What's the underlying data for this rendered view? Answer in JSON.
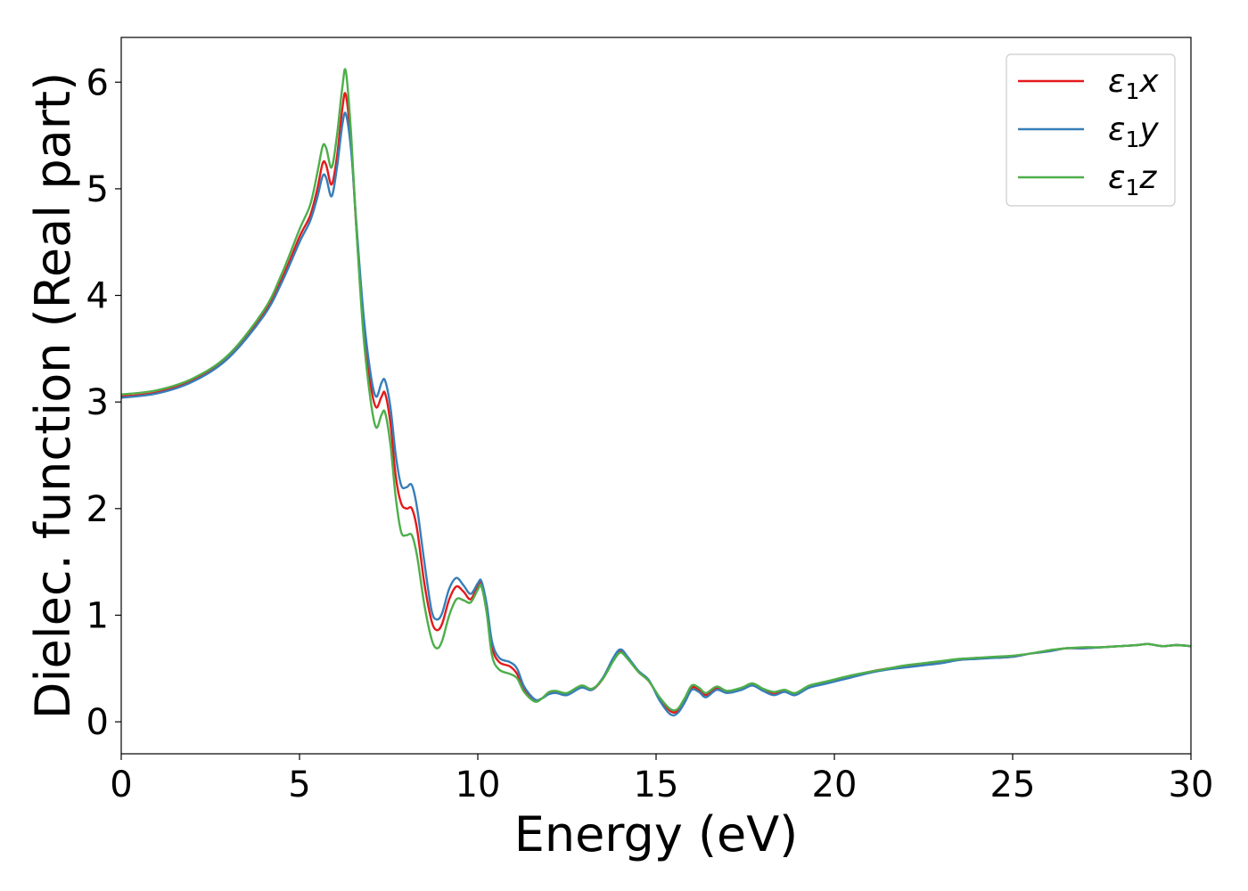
{
  "chart_data": {
    "type": "line",
    "xlabel": "Energy (eV)",
    "ylabel": "Dielec. function (Real part)",
    "xlim": [
      0,
      30
    ],
    "ylim": [
      -0.3,
      6.42
    ],
    "xticks": [
      0,
      5,
      10,
      15,
      20,
      25,
      30
    ],
    "yticks": [
      0,
      1,
      2,
      3,
      4,
      5,
      6
    ],
    "grid": false,
    "legend_position": "top-right",
    "series": [
      {
        "name": "ε₁x",
        "legend_main": "ε",
        "legend_sub": "1",
        "legend_var": "x",
        "color": "#e41a1c",
        "points": [
          [
            0,
            3.05
          ],
          [
            1,
            3.09
          ],
          [
            2,
            3.2
          ],
          [
            3,
            3.42
          ],
          [
            4,
            3.83
          ],
          [
            4.5,
            4.15
          ],
          [
            5,
            4.55
          ],
          [
            5.3,
            4.75
          ],
          [
            5.5,
            5.0
          ],
          [
            5.65,
            5.24
          ],
          [
            5.75,
            5.22
          ],
          [
            5.9,
            5.04
          ],
          [
            6.05,
            5.3
          ],
          [
            6.2,
            5.75
          ],
          [
            6.3,
            5.88
          ],
          [
            6.45,
            5.4
          ],
          [
            6.6,
            4.6
          ],
          [
            6.8,
            3.7
          ],
          [
            7.0,
            3.15
          ],
          [
            7.15,
            2.95
          ],
          [
            7.3,
            3.05
          ],
          [
            7.4,
            3.08
          ],
          [
            7.55,
            2.8
          ],
          [
            7.7,
            2.3
          ],
          [
            7.85,
            2.05
          ],
          [
            8.0,
            2.0
          ],
          [
            8.15,
            2.0
          ],
          [
            8.3,
            1.8
          ],
          [
            8.5,
            1.3
          ],
          [
            8.7,
            0.95
          ],
          [
            8.85,
            0.86
          ],
          [
            9.0,
            0.92
          ],
          [
            9.2,
            1.15
          ],
          [
            9.4,
            1.27
          ],
          [
            9.6,
            1.22
          ],
          [
            9.8,
            1.15
          ],
          [
            10.0,
            1.28
          ],
          [
            10.1,
            1.3
          ],
          [
            10.25,
            1.08
          ],
          [
            10.4,
            0.7
          ],
          [
            10.6,
            0.56
          ],
          [
            10.9,
            0.52
          ],
          [
            11.1,
            0.45
          ],
          [
            11.3,
            0.3
          ],
          [
            11.6,
            0.2
          ],
          [
            11.8,
            0.22
          ],
          [
            12.0,
            0.27
          ],
          [
            12.2,
            0.28
          ],
          [
            12.5,
            0.26
          ],
          [
            12.9,
            0.33
          ],
          [
            13.2,
            0.3
          ],
          [
            13.5,
            0.4
          ],
          [
            13.8,
            0.58
          ],
          [
            14.0,
            0.66
          ],
          [
            14.2,
            0.6
          ],
          [
            14.5,
            0.47
          ],
          [
            14.8,
            0.38
          ],
          [
            15.1,
            0.22
          ],
          [
            15.4,
            0.1
          ],
          [
            15.6,
            0.1
          ],
          [
            15.8,
            0.2
          ],
          [
            16.0,
            0.32
          ],
          [
            16.2,
            0.3
          ],
          [
            16.4,
            0.25
          ],
          [
            16.7,
            0.32
          ],
          [
            17.0,
            0.28
          ],
          [
            17.4,
            0.31
          ],
          [
            17.7,
            0.35
          ],
          [
            18.0,
            0.3
          ],
          [
            18.3,
            0.26
          ],
          [
            18.6,
            0.29
          ],
          [
            18.9,
            0.26
          ],
          [
            19.3,
            0.33
          ],
          [
            19.8,
            0.37
          ],
          [
            20.4,
            0.42
          ],
          [
            21.0,
            0.47
          ],
          [
            21.5,
            0.5
          ],
          [
            22.0,
            0.52
          ],
          [
            22.5,
            0.54
          ],
          [
            23.0,
            0.56
          ],
          [
            23.5,
            0.58
          ],
          [
            24.0,
            0.6
          ],
          [
            24.5,
            0.6
          ],
          [
            25.0,
            0.61
          ],
          [
            25.5,
            0.64
          ],
          [
            26.0,
            0.66
          ],
          [
            26.5,
            0.69
          ],
          [
            27.0,
            0.69
          ],
          [
            27.5,
            0.7
          ],
          [
            28.0,
            0.71
          ],
          [
            28.5,
            0.72
          ],
          [
            28.8,
            0.73
          ],
          [
            29.2,
            0.71
          ],
          [
            29.6,
            0.72
          ],
          [
            30.0,
            0.71
          ]
        ]
      },
      {
        "name": "ε₁y",
        "legend_main": "ε",
        "legend_sub": "1",
        "legend_var": "y",
        "color": "#377eb8",
        "points": [
          [
            0,
            3.04
          ],
          [
            1,
            3.08
          ],
          [
            2,
            3.19
          ],
          [
            3,
            3.41
          ],
          [
            4,
            3.81
          ],
          [
            4.5,
            4.12
          ],
          [
            5,
            4.5
          ],
          [
            5.3,
            4.7
          ],
          [
            5.5,
            4.92
          ],
          [
            5.65,
            5.12
          ],
          [
            5.75,
            5.1
          ],
          [
            5.9,
            4.93
          ],
          [
            6.05,
            5.2
          ],
          [
            6.2,
            5.6
          ],
          [
            6.3,
            5.7
          ],
          [
            6.45,
            5.35
          ],
          [
            6.6,
            4.65
          ],
          [
            6.8,
            3.8
          ],
          [
            7.0,
            3.25
          ],
          [
            7.15,
            3.05
          ],
          [
            7.3,
            3.18
          ],
          [
            7.4,
            3.2
          ],
          [
            7.55,
            2.95
          ],
          [
            7.7,
            2.5
          ],
          [
            7.85,
            2.22
          ],
          [
            8.0,
            2.2
          ],
          [
            8.15,
            2.22
          ],
          [
            8.3,
            2.0
          ],
          [
            8.5,
            1.5
          ],
          [
            8.7,
            1.05
          ],
          [
            8.85,
            0.96
          ],
          [
            9.0,
            1.02
          ],
          [
            9.2,
            1.25
          ],
          [
            9.4,
            1.35
          ],
          [
            9.6,
            1.28
          ],
          [
            9.8,
            1.2
          ],
          [
            10.0,
            1.3
          ],
          [
            10.1,
            1.32
          ],
          [
            10.25,
            1.1
          ],
          [
            10.4,
            0.75
          ],
          [
            10.6,
            0.6
          ],
          [
            10.9,
            0.56
          ],
          [
            11.1,
            0.5
          ],
          [
            11.3,
            0.33
          ],
          [
            11.6,
            0.21
          ],
          [
            11.8,
            0.22
          ],
          [
            12.0,
            0.26
          ],
          [
            12.2,
            0.27
          ],
          [
            12.5,
            0.25
          ],
          [
            12.9,
            0.32
          ],
          [
            13.2,
            0.3
          ],
          [
            13.5,
            0.41
          ],
          [
            13.8,
            0.6
          ],
          [
            14.0,
            0.68
          ],
          [
            14.2,
            0.61
          ],
          [
            14.5,
            0.48
          ],
          [
            14.8,
            0.39
          ],
          [
            15.1,
            0.2
          ],
          [
            15.4,
            0.07
          ],
          [
            15.6,
            0.08
          ],
          [
            15.8,
            0.18
          ],
          [
            16.0,
            0.3
          ],
          [
            16.2,
            0.28
          ],
          [
            16.4,
            0.23
          ],
          [
            16.7,
            0.3
          ],
          [
            17.0,
            0.27
          ],
          [
            17.4,
            0.3
          ],
          [
            17.7,
            0.34
          ],
          [
            18.0,
            0.29
          ],
          [
            18.3,
            0.25
          ],
          [
            18.6,
            0.28
          ],
          [
            18.9,
            0.25
          ],
          [
            19.3,
            0.32
          ],
          [
            19.8,
            0.36
          ],
          [
            20.4,
            0.41
          ],
          [
            21.0,
            0.46
          ],
          [
            21.5,
            0.49
          ],
          [
            22.0,
            0.51
          ],
          [
            22.5,
            0.53
          ],
          [
            23.0,
            0.55
          ],
          [
            23.5,
            0.58
          ],
          [
            24.0,
            0.59
          ],
          [
            24.5,
            0.6
          ],
          [
            25.0,
            0.61
          ],
          [
            25.5,
            0.64
          ],
          [
            26.0,
            0.66
          ],
          [
            26.5,
            0.69
          ],
          [
            27.0,
            0.69
          ],
          [
            27.5,
            0.7
          ],
          [
            28.0,
            0.71
          ],
          [
            28.5,
            0.72
          ],
          [
            28.8,
            0.73
          ],
          [
            29.2,
            0.71
          ],
          [
            29.6,
            0.72
          ],
          [
            30.0,
            0.71
          ]
        ]
      },
      {
        "name": "ε₁z",
        "legend_main": "ε",
        "legend_sub": "1",
        "legend_var": "z",
        "color": "#4daf4a",
        "points": [
          [
            0,
            3.07
          ],
          [
            1,
            3.11
          ],
          [
            2,
            3.22
          ],
          [
            3,
            3.44
          ],
          [
            4,
            3.86
          ],
          [
            4.5,
            4.2
          ],
          [
            5,
            4.62
          ],
          [
            5.3,
            4.85
          ],
          [
            5.5,
            5.15
          ],
          [
            5.65,
            5.4
          ],
          [
            5.75,
            5.38
          ],
          [
            5.9,
            5.2
          ],
          [
            6.05,
            5.5
          ],
          [
            6.2,
            5.95
          ],
          [
            6.3,
            6.1
          ],
          [
            6.45,
            5.5
          ],
          [
            6.6,
            4.6
          ],
          [
            6.8,
            3.6
          ],
          [
            7.0,
            3.0
          ],
          [
            7.15,
            2.76
          ],
          [
            7.3,
            2.88
          ],
          [
            7.4,
            2.9
          ],
          [
            7.55,
            2.6
          ],
          [
            7.7,
            2.1
          ],
          [
            7.85,
            1.78
          ],
          [
            8.0,
            1.75
          ],
          [
            8.15,
            1.75
          ],
          [
            8.3,
            1.55
          ],
          [
            8.5,
            1.1
          ],
          [
            8.7,
            0.78
          ],
          [
            8.85,
            0.69
          ],
          [
            9.0,
            0.76
          ],
          [
            9.2,
            1.0
          ],
          [
            9.4,
            1.15
          ],
          [
            9.6,
            1.14
          ],
          [
            9.8,
            1.12
          ],
          [
            10.0,
            1.24
          ],
          [
            10.1,
            1.27
          ],
          [
            10.25,
            1.02
          ],
          [
            10.4,
            0.62
          ],
          [
            10.6,
            0.49
          ],
          [
            10.9,
            0.45
          ],
          [
            11.1,
            0.41
          ],
          [
            11.3,
            0.28
          ],
          [
            11.6,
            0.19
          ],
          [
            11.8,
            0.22
          ],
          [
            12.0,
            0.28
          ],
          [
            12.2,
            0.29
          ],
          [
            12.5,
            0.27
          ],
          [
            12.9,
            0.34
          ],
          [
            13.2,
            0.31
          ],
          [
            13.5,
            0.4
          ],
          [
            13.8,
            0.57
          ],
          [
            14.0,
            0.65
          ],
          [
            14.2,
            0.59
          ],
          [
            14.5,
            0.47
          ],
          [
            14.8,
            0.38
          ],
          [
            15.1,
            0.23
          ],
          [
            15.4,
            0.12
          ],
          [
            15.6,
            0.12
          ],
          [
            15.8,
            0.22
          ],
          [
            16.0,
            0.34
          ],
          [
            16.2,
            0.32
          ],
          [
            16.4,
            0.27
          ],
          [
            16.7,
            0.33
          ],
          [
            17.0,
            0.29
          ],
          [
            17.4,
            0.32
          ],
          [
            17.7,
            0.36
          ],
          [
            18.0,
            0.31
          ],
          [
            18.3,
            0.28
          ],
          [
            18.6,
            0.3
          ],
          [
            18.9,
            0.27
          ],
          [
            19.3,
            0.34
          ],
          [
            19.8,
            0.38
          ],
          [
            20.4,
            0.43
          ],
          [
            21.0,
            0.47
          ],
          [
            21.5,
            0.5
          ],
          [
            22.0,
            0.53
          ],
          [
            22.5,
            0.55
          ],
          [
            23.0,
            0.57
          ],
          [
            23.5,
            0.59
          ],
          [
            24.0,
            0.6
          ],
          [
            24.5,
            0.61
          ],
          [
            25.0,
            0.62
          ],
          [
            25.5,
            0.64
          ],
          [
            26.0,
            0.67
          ],
          [
            26.5,
            0.69
          ],
          [
            27.0,
            0.7
          ],
          [
            27.5,
            0.7
          ],
          [
            28.0,
            0.71
          ],
          [
            28.5,
            0.72
          ],
          [
            28.8,
            0.73
          ],
          [
            29.2,
            0.71
          ],
          [
            29.6,
            0.72
          ],
          [
            30.0,
            0.71
          ]
        ]
      }
    ]
  }
}
